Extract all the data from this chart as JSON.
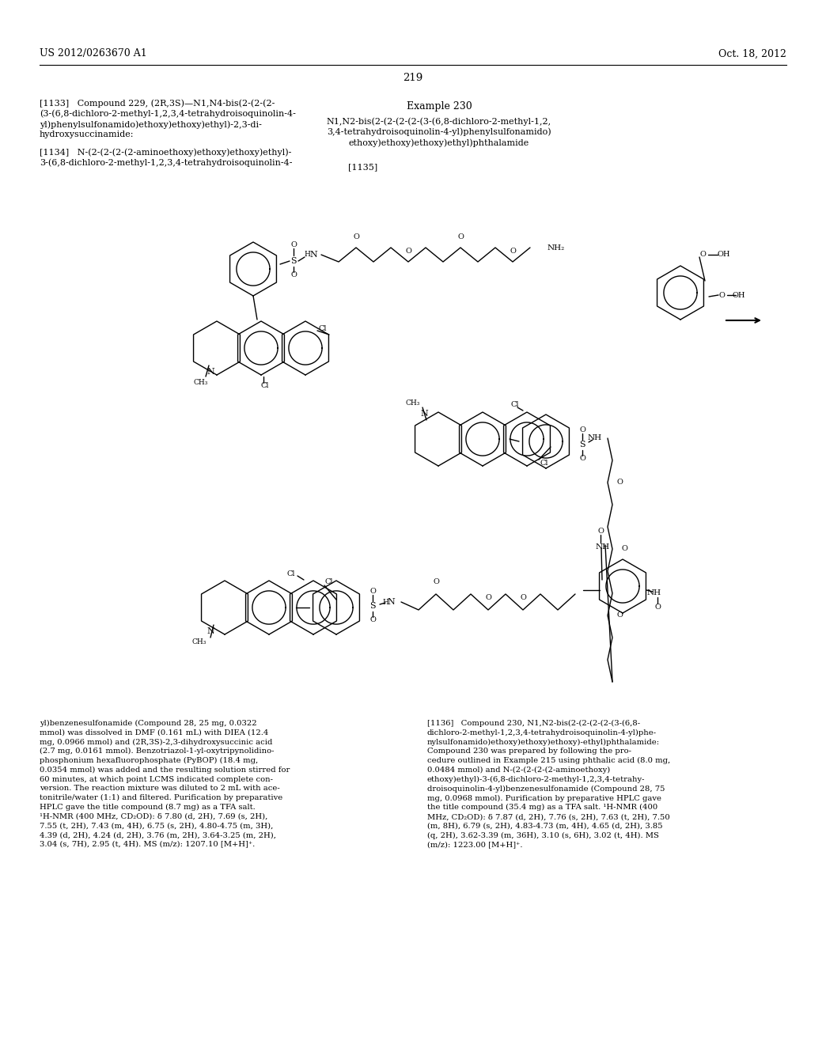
{
  "background_color": "#ffffff",
  "page_number": "219",
  "header_left": "US 2012/0263670 A1",
  "header_right": "Oct. 18, 2012",
  "col1_text1": "[1133]   Compound 229, (2R,3S)—N1,N4-bis(2-(2-(2-\n(3-(6,8-dichloro-2-methyl-1,2,3,4-tetrahydroisoquinolin-4-\nyl)phenylsulfonamido)ethoxy)ethoxy)ethyl)-2,3-di-\nhydroxysuccinamide:",
  "col1_text2": "[1134]   N-(2-(2-(2-(2-aminoethoxy)ethoxy)ethoxy)ethyl)-\n3-(6,8-dichloro-2-methyl-1,2,3,4-tetrahydroisoquinolin-4-",
  "col2_title": "Example 230",
  "col2_text1": "N1,N2-bis(2-(2-(2-(2-(3-(6,8-dichloro-2-methyl-1,2,\n3,4-tetrahydroisoquinolin-4-yl)phenylsulfonamido)\nethoxy)ethoxy)ethoxy)ethyl)phthalamide",
  "col2_ref": "[1135]",
  "bottom_left": "yl)benzenesulfonamide (Compound 28, 25 mg, 0.0322\nmmol) was dissolved in DMF (0.161 mL) with DIEA (12.4\nmg, 0.0966 mmol) and (2R,3S)-2,3-dihydroxysuccinic acid\n(2.7 mg, 0.0161 mmol). Benzotriazol-1-yl-oxytripynolidino-\nphosphonium hexafluorophosphate (PyBOP) (18.4 mg,\n0.0354 mmol) was added and the resulting solution stirred for\n60 minutes, at which point LCMS indicated complete con-\nversion. The reaction mixture was diluted to 2 mL with ace-\ntonitrile/water (1:1) and filtered. Purification by preparative\nHPLC gave the title compound (8.7 mg) as a TFA salt.\n¹H-NMR (400 MHz, CD₂OD): δ 7.80 (d, 2H), 7.69 (s, 2H),\n7.55 (t, 2H), 7.43 (m, 4H), 6.75 (s, 2H), 4.80-4.75 (m, 3H),\n4.39 (d, 2H), 4.24 (d, 2H), 3.76 (m, 2H), 3.64-3.25 (m, 2H),\n3.04 (s, 7H), 2.95 (t, 4H). MS (m/z): 1207.10 [M+H]⁺.",
  "bottom_right": "[1136]   Compound 230, N1,N2-bis(2-(2-(2-(2-(3-(6,8-\ndichloro-2-methyl-1,2,3,4-tetrahydroisoquinolin-4-yl)phe-\nnylsulfonamido)ethoxy)ethoxy)ethoxy)-ethyl)phthalamide:\nCompound 230 was prepared by following the pro-\ncedure outlined in Example 215 using phthalic acid (8.0 mg,\n0.0484 mmol) and N-(2-(2-(2-(2-aminoethoxy)\nethoxy)ethyl)-3-(6,8-dichloro-2-methyl-1,2,3,4-tetrahy-\ndroisoquinolin-4-yl)benzenesulfonamide (Compound 28, 75\nmg, 0.0968 mmol). Purification by preparative HPLC gave\nthe title compound (35.4 mg) as a TFA salt. ¹H-NMR (400\nMHz, CD₂OD): δ 7.87 (d, 2H), 7.76 (s, 2H), 7.63 (t, 2H), 7.50\n(m, 8H), 6.79 (s, 2H), 4.83-4.73 (m, 4H), 4.65 (d, 2H), 3.85\n(q, 2H), 3.62-3.39 (m, 36H), 3.10 (s, 6H), 3.02 (t, 4H). MS\n(m/z): 1223.00 [M+H]⁺."
}
